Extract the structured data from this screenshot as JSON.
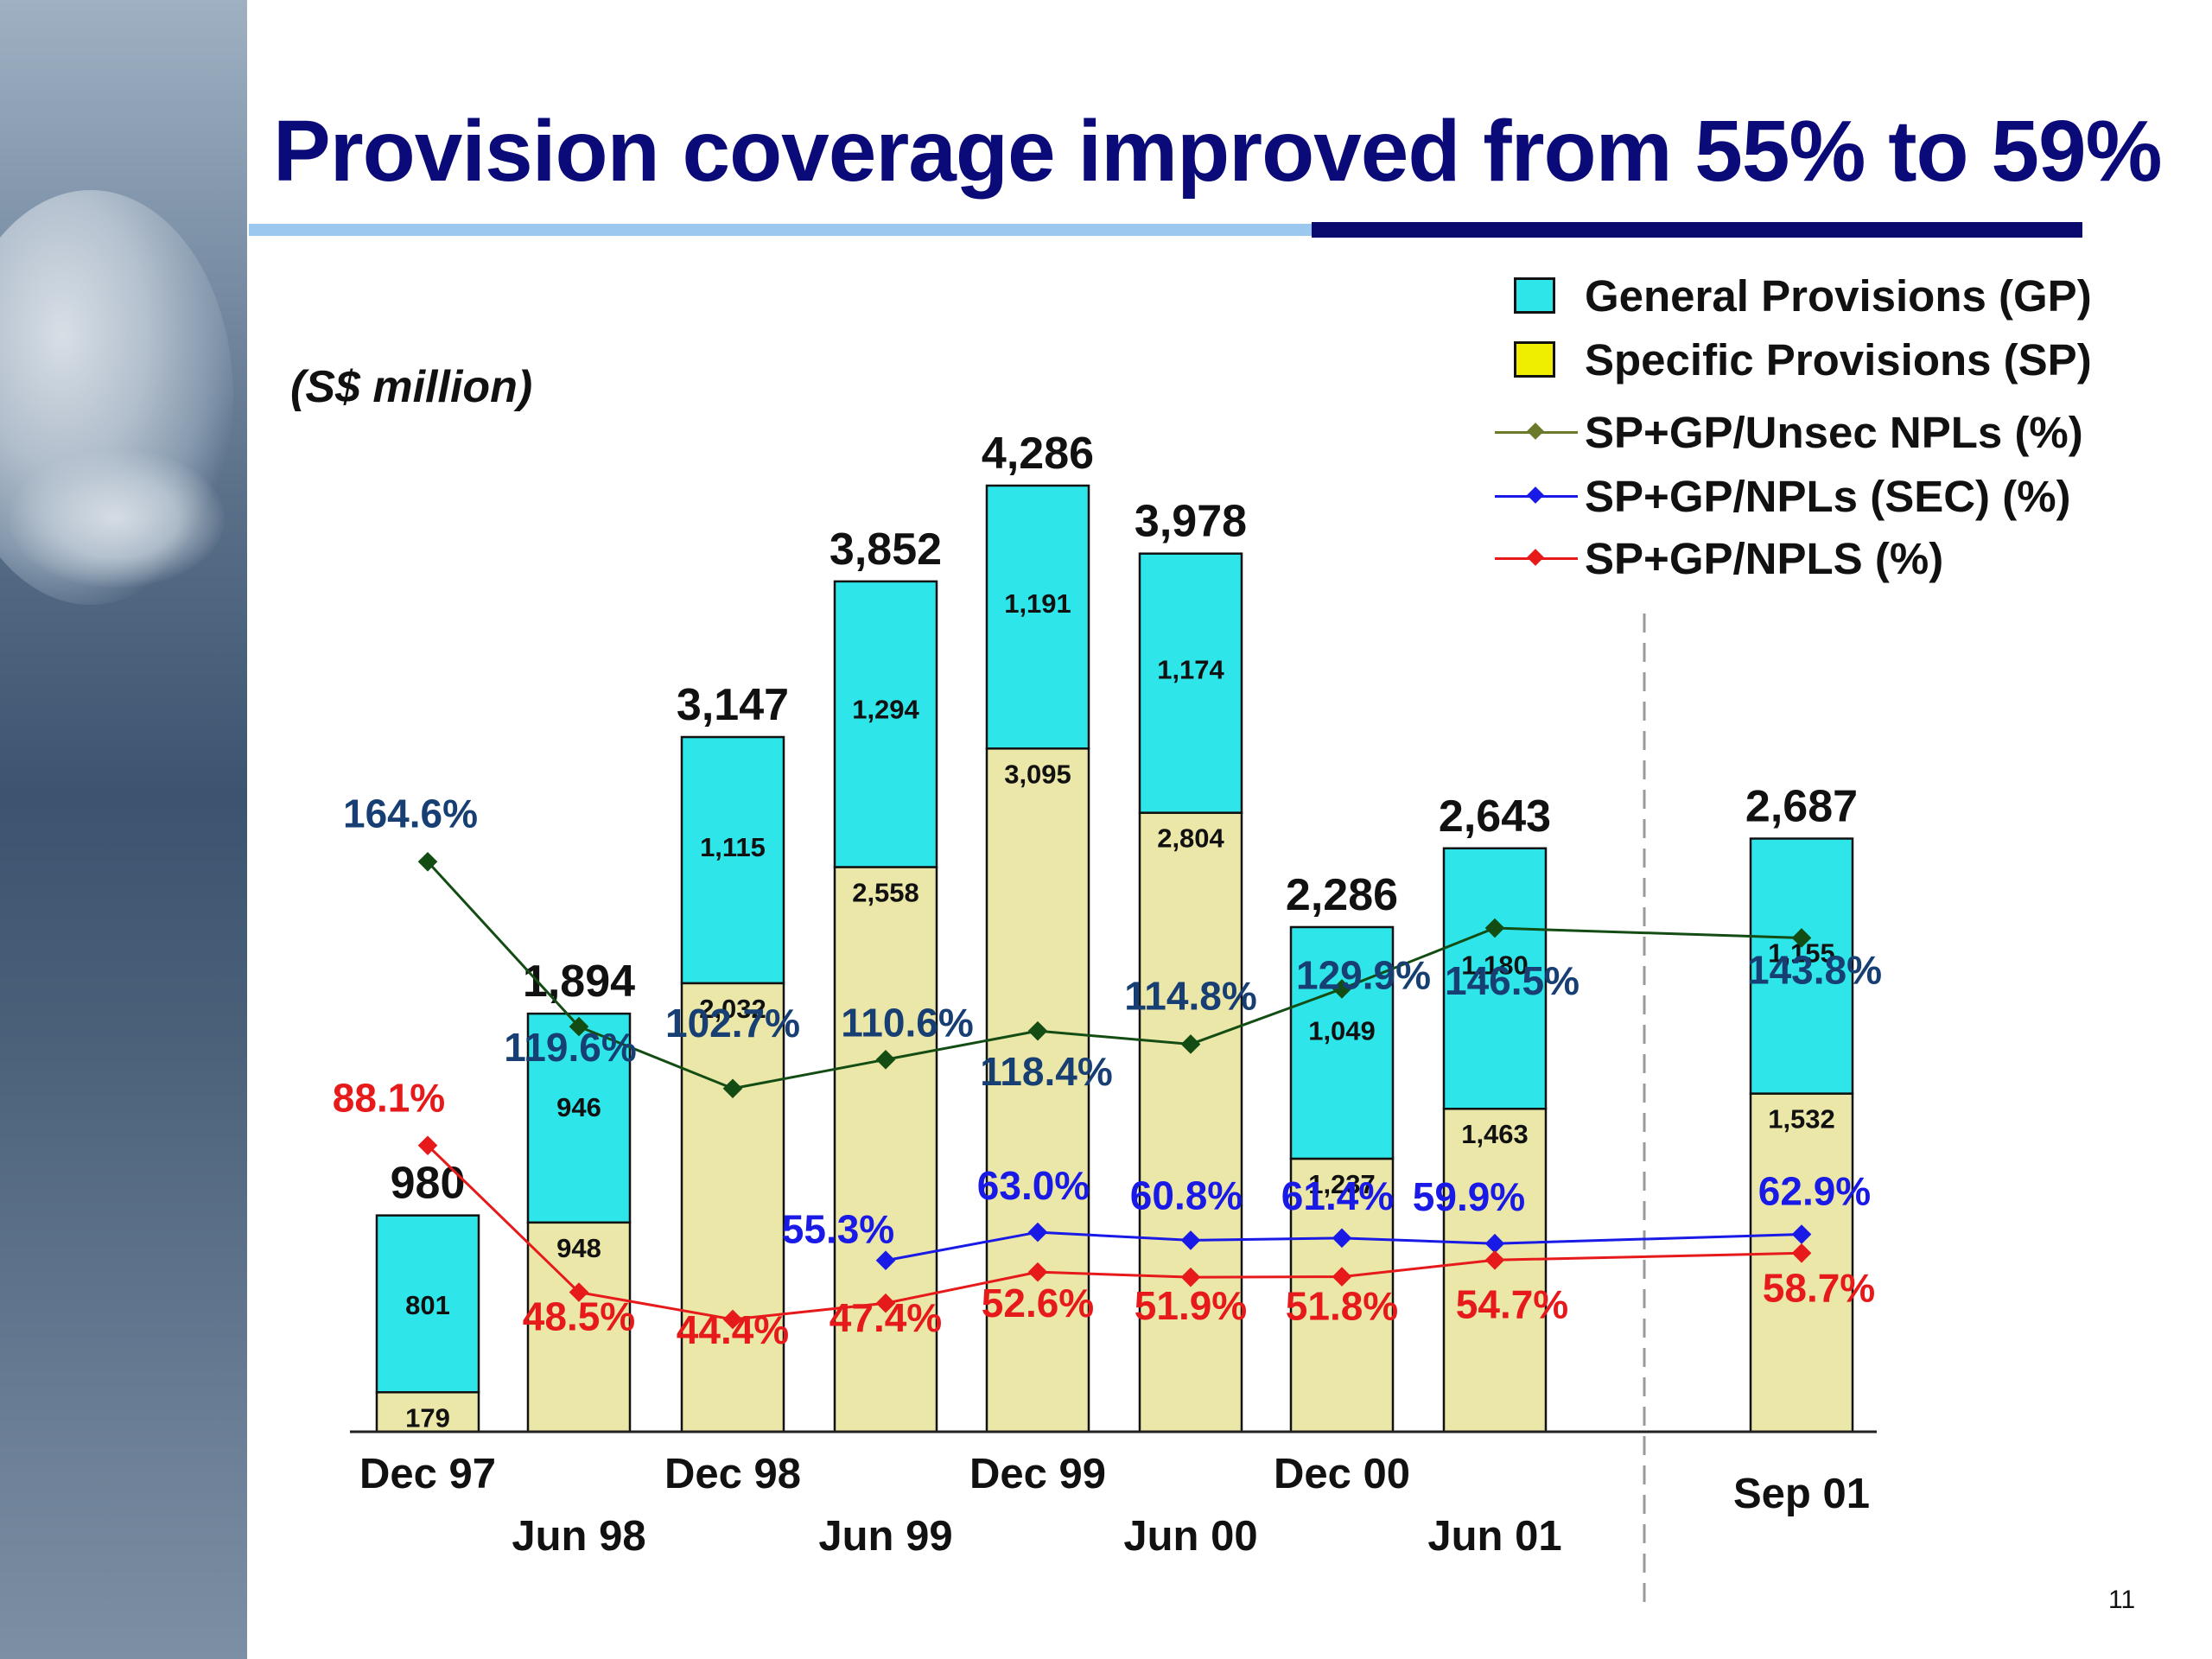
{
  "title": "Provision coverage improved from 55% to 59%",
  "unit_label": "(S$ million)",
  "page_number": "11",
  "legend": [
    {
      "key": "gp",
      "label": "General Provisions (GP)",
      "kind": "box",
      "color": "#2ee6ea"
    },
    {
      "key": "sp",
      "label": "Specific Provisions (SP)",
      "kind": "box",
      "color": "#f0ee00"
    },
    {
      "key": "unsec",
      "label": "SP+GP/Unsec NPLs (%)",
      "kind": "line",
      "color": "#6b7a2a"
    },
    {
      "key": "sec",
      "label": "SP+GP/NPLs (SEC) (%)",
      "kind": "line",
      "color": "#1a1ae6"
    },
    {
      "key": "npls",
      "label": "SP+GP/NPLS (%)",
      "kind": "line",
      "color": "#e61a1a"
    }
  ],
  "colors": {
    "gp": "#2ee6ea",
    "sp": "#ebe7a8",
    "unsec_line": "#134d13",
    "unsec_label": "#173f73",
    "sec": "#1a1ae6",
    "npls": "#e61a1a"
  },
  "chart_data": {
    "type": "bar",
    "stacked": true,
    "categories": [
      "Dec 97",
      "Jun 98",
      "Dec 98",
      "Jun 99",
      "Dec 99",
      "Jun 00",
      "Dec 00",
      "Jun 01",
      "Sep 01"
    ],
    "series": [
      {
        "name": "Specific Provisions (SP)",
        "values": [
          179,
          948,
          2032,
          2558,
          3095,
          2804,
          1237,
          1463,
          1532
        ]
      },
      {
        "name": "General Provisions (GP)",
        "values": [
          801,
          946,
          1115,
          1294,
          1191,
          1174,
          1049,
          1180,
          1155
        ]
      }
    ],
    "totals": [
      "980",
      "1,894",
      "3,147",
      "3,852",
      "4,286",
      "3,978",
      "2,286",
      "2,643",
      "2,687"
    ],
    "sp_labels": [
      "179",
      "948",
      "2,032",
      "2,558",
      "3,095",
      "2,804",
      "1,237",
      "1,463",
      "1,532"
    ],
    "gp_labels": [
      "801",
      "946",
      "1,115",
      "1,294",
      "1,191",
      "1,174",
      "1,049",
      "1,180",
      "1,155"
    ],
    "ratio_series": [
      {
        "name": "SP+GP/Unsec NPLs (%)",
        "values": [
          164.6,
          119.6,
          102.7,
          110.6,
          118.4,
          114.8,
          129.9,
          146.5,
          143.8
        ],
        "labels": [
          "164.6%",
          "119.6%",
          "102.7%",
          "110.6%",
          "118.4%",
          "114.8%",
          "129.9%",
          "146.5%",
          "143.8%"
        ]
      },
      {
        "name": "SP+GP/NPLs (SEC) (%)",
        "values": [
          null,
          null,
          null,
          55.3,
          63.0,
          60.8,
          61.4,
          59.9,
          62.9
        ],
        "labels": [
          null,
          null,
          null,
          "55.3%",
          "63.0%",
          "60.8%",
          "61.4%",
          "59.9%",
          "62.9%"
        ]
      },
      {
        "name": "SP+GP/NPLS (%)",
        "values": [
          88.1,
          48.5,
          44.4,
          47.4,
          52.6,
          51.9,
          51.8,
          54.7,
          58.7
        ],
        "labels": [
          "88.1%",
          "48.5%",
          "44.4%",
          "47.4%",
          "52.6%",
          "51.9%",
          "51.8%",
          "54.7%",
          "58.7%"
        ]
      }
    ],
    "ylim": [
      0,
      4286
    ],
    "grid": false,
    "legend_position": "top-right"
  }
}
